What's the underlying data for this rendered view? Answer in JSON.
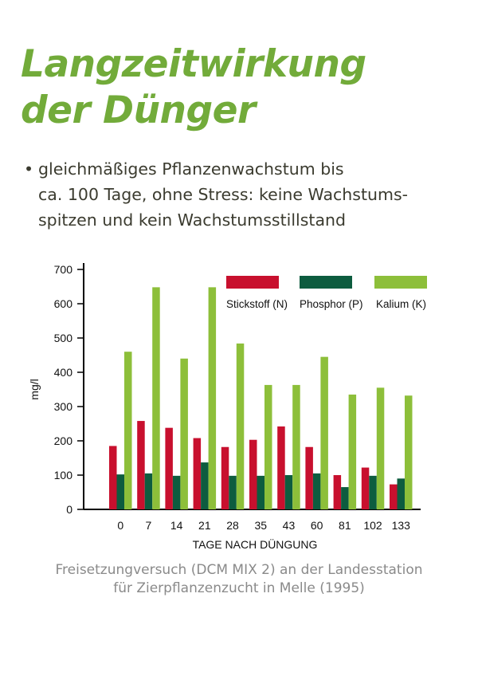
{
  "header": {
    "title_line1": "Langzeitwirkung",
    "title_line2": "der Dünger"
  },
  "bullet": {
    "marker": "•",
    "lines": [
      "gleichmäßiges Pflanzenwachstum bis",
      "ca. 100 Tage, ohne Stress: keine Wachstums-",
      "spitzen und kein Wachstumsstillstand"
    ]
  },
  "colors": {
    "title": "#72ab3a",
    "stickstoff": "#c8102e",
    "phosphor": "#0d5c3f",
    "kalium": "#8dbf3a"
  },
  "chart_data": {
    "type": "bar",
    "title": "",
    "xlabel": "TAGE NACH DÜNGUNG",
    "ylabel": "mg/l",
    "ylim": [
      0,
      700
    ],
    "yticks": [
      0,
      100,
      200,
      300,
      400,
      500,
      600,
      700
    ],
    "grid": false,
    "legend_position": "top-right",
    "categories": [
      "0",
      "7",
      "14",
      "21",
      "28",
      "35",
      "43",
      "60",
      "81",
      "102",
      "133"
    ],
    "series": [
      {
        "name": "Stickstoff (N)",
        "color": "#c8102e",
        "values": [
          185,
          258,
          238,
          208,
          182,
          203,
          242,
          182,
          100,
          122,
          73
        ]
      },
      {
        "name": "Phosphor (P)",
        "color": "#0d5c3f",
        "values": [
          102,
          105,
          98,
          137,
          98,
          98,
          100,
          105,
          65,
          98,
          90
        ]
      },
      {
        "name": "Kalium (K)",
        "color": "#8dbf3a",
        "values": [
          460,
          648,
          440,
          648,
          484,
          363,
          363,
          445,
          335,
          355,
          332
        ]
      }
    ]
  },
  "caption": {
    "line1": "Freisetzungversuch (DCM MIX 2) an der Landesstation",
    "line2": "für Zierpflanzenzucht in Melle (1995)"
  }
}
